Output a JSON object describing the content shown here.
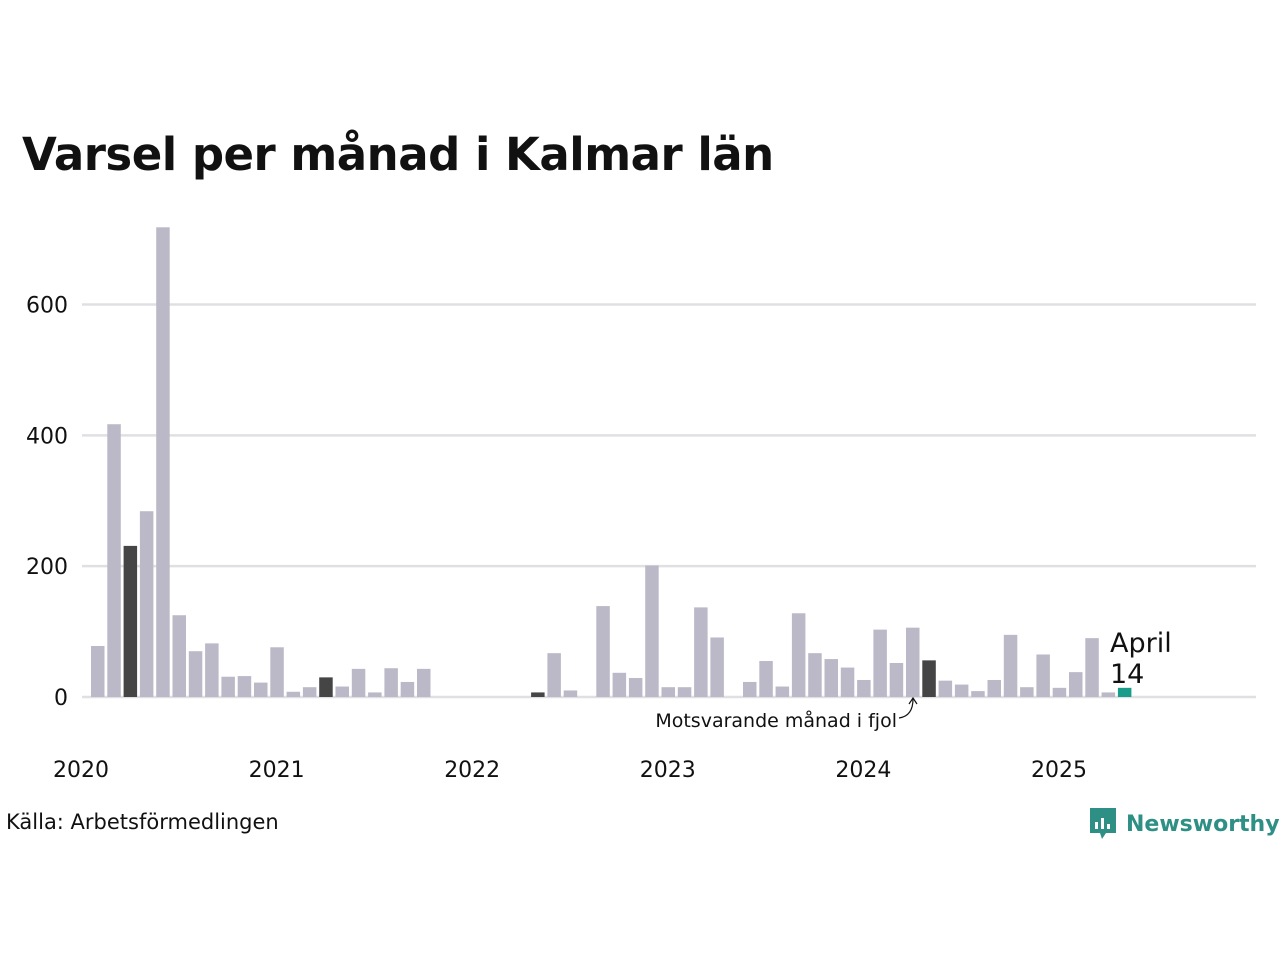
{
  "title": "Varsel per månad i Kalmar län",
  "source": "Källa: Arbetsförmedlingen",
  "brand": {
    "name": "Newsworthy",
    "icon": "newsworthy-logo-icon"
  },
  "colors": {
    "bar": "#bbb9c7",
    "same_month": "#454545",
    "current": "#1a9c8a",
    "grid": "#e0e0e4",
    "brand": "#2e8f84"
  },
  "annotation": {
    "last_year_label": "Motsvarande månad i fjol",
    "current_month": "April",
    "current_value": "14"
  },
  "chart_data": {
    "type": "bar",
    "title": "Varsel per månad i Kalmar län",
    "xlabel": "",
    "ylabel": "",
    "ylim": [
      0,
      720
    ],
    "yticks": [
      0,
      200,
      400,
      600
    ],
    "year_labels": [
      "2020",
      "2021",
      "2022",
      "2023",
      "2024",
      "2025"
    ],
    "start": "2020-01",
    "grid": true,
    "legend": "none",
    "series": [
      {
        "values": [
          78,
          417,
          231,
          284,
          718,
          125,
          70,
          82,
          31,
          32,
          22,
          76,
          8,
          15,
          30,
          16,
          43,
          7,
          44,
          23,
          43,
          0,
          0,
          0,
          0,
          0,
          0,
          7,
          67,
          10,
          0,
          139,
          37,
          29,
          201,
          15,
          15,
          137,
          91,
          0,
          23,
          55,
          16,
          128,
          67,
          58,
          45,
          26,
          103,
          52,
          106,
          56,
          25,
          19,
          9,
          26,
          95,
          15,
          65,
          14,
          38,
          90,
          7,
          14
        ]
      }
    ],
    "highlight_last_year": [
      2,
      14,
      27,
      51
    ],
    "highlight_current": 63
  }
}
